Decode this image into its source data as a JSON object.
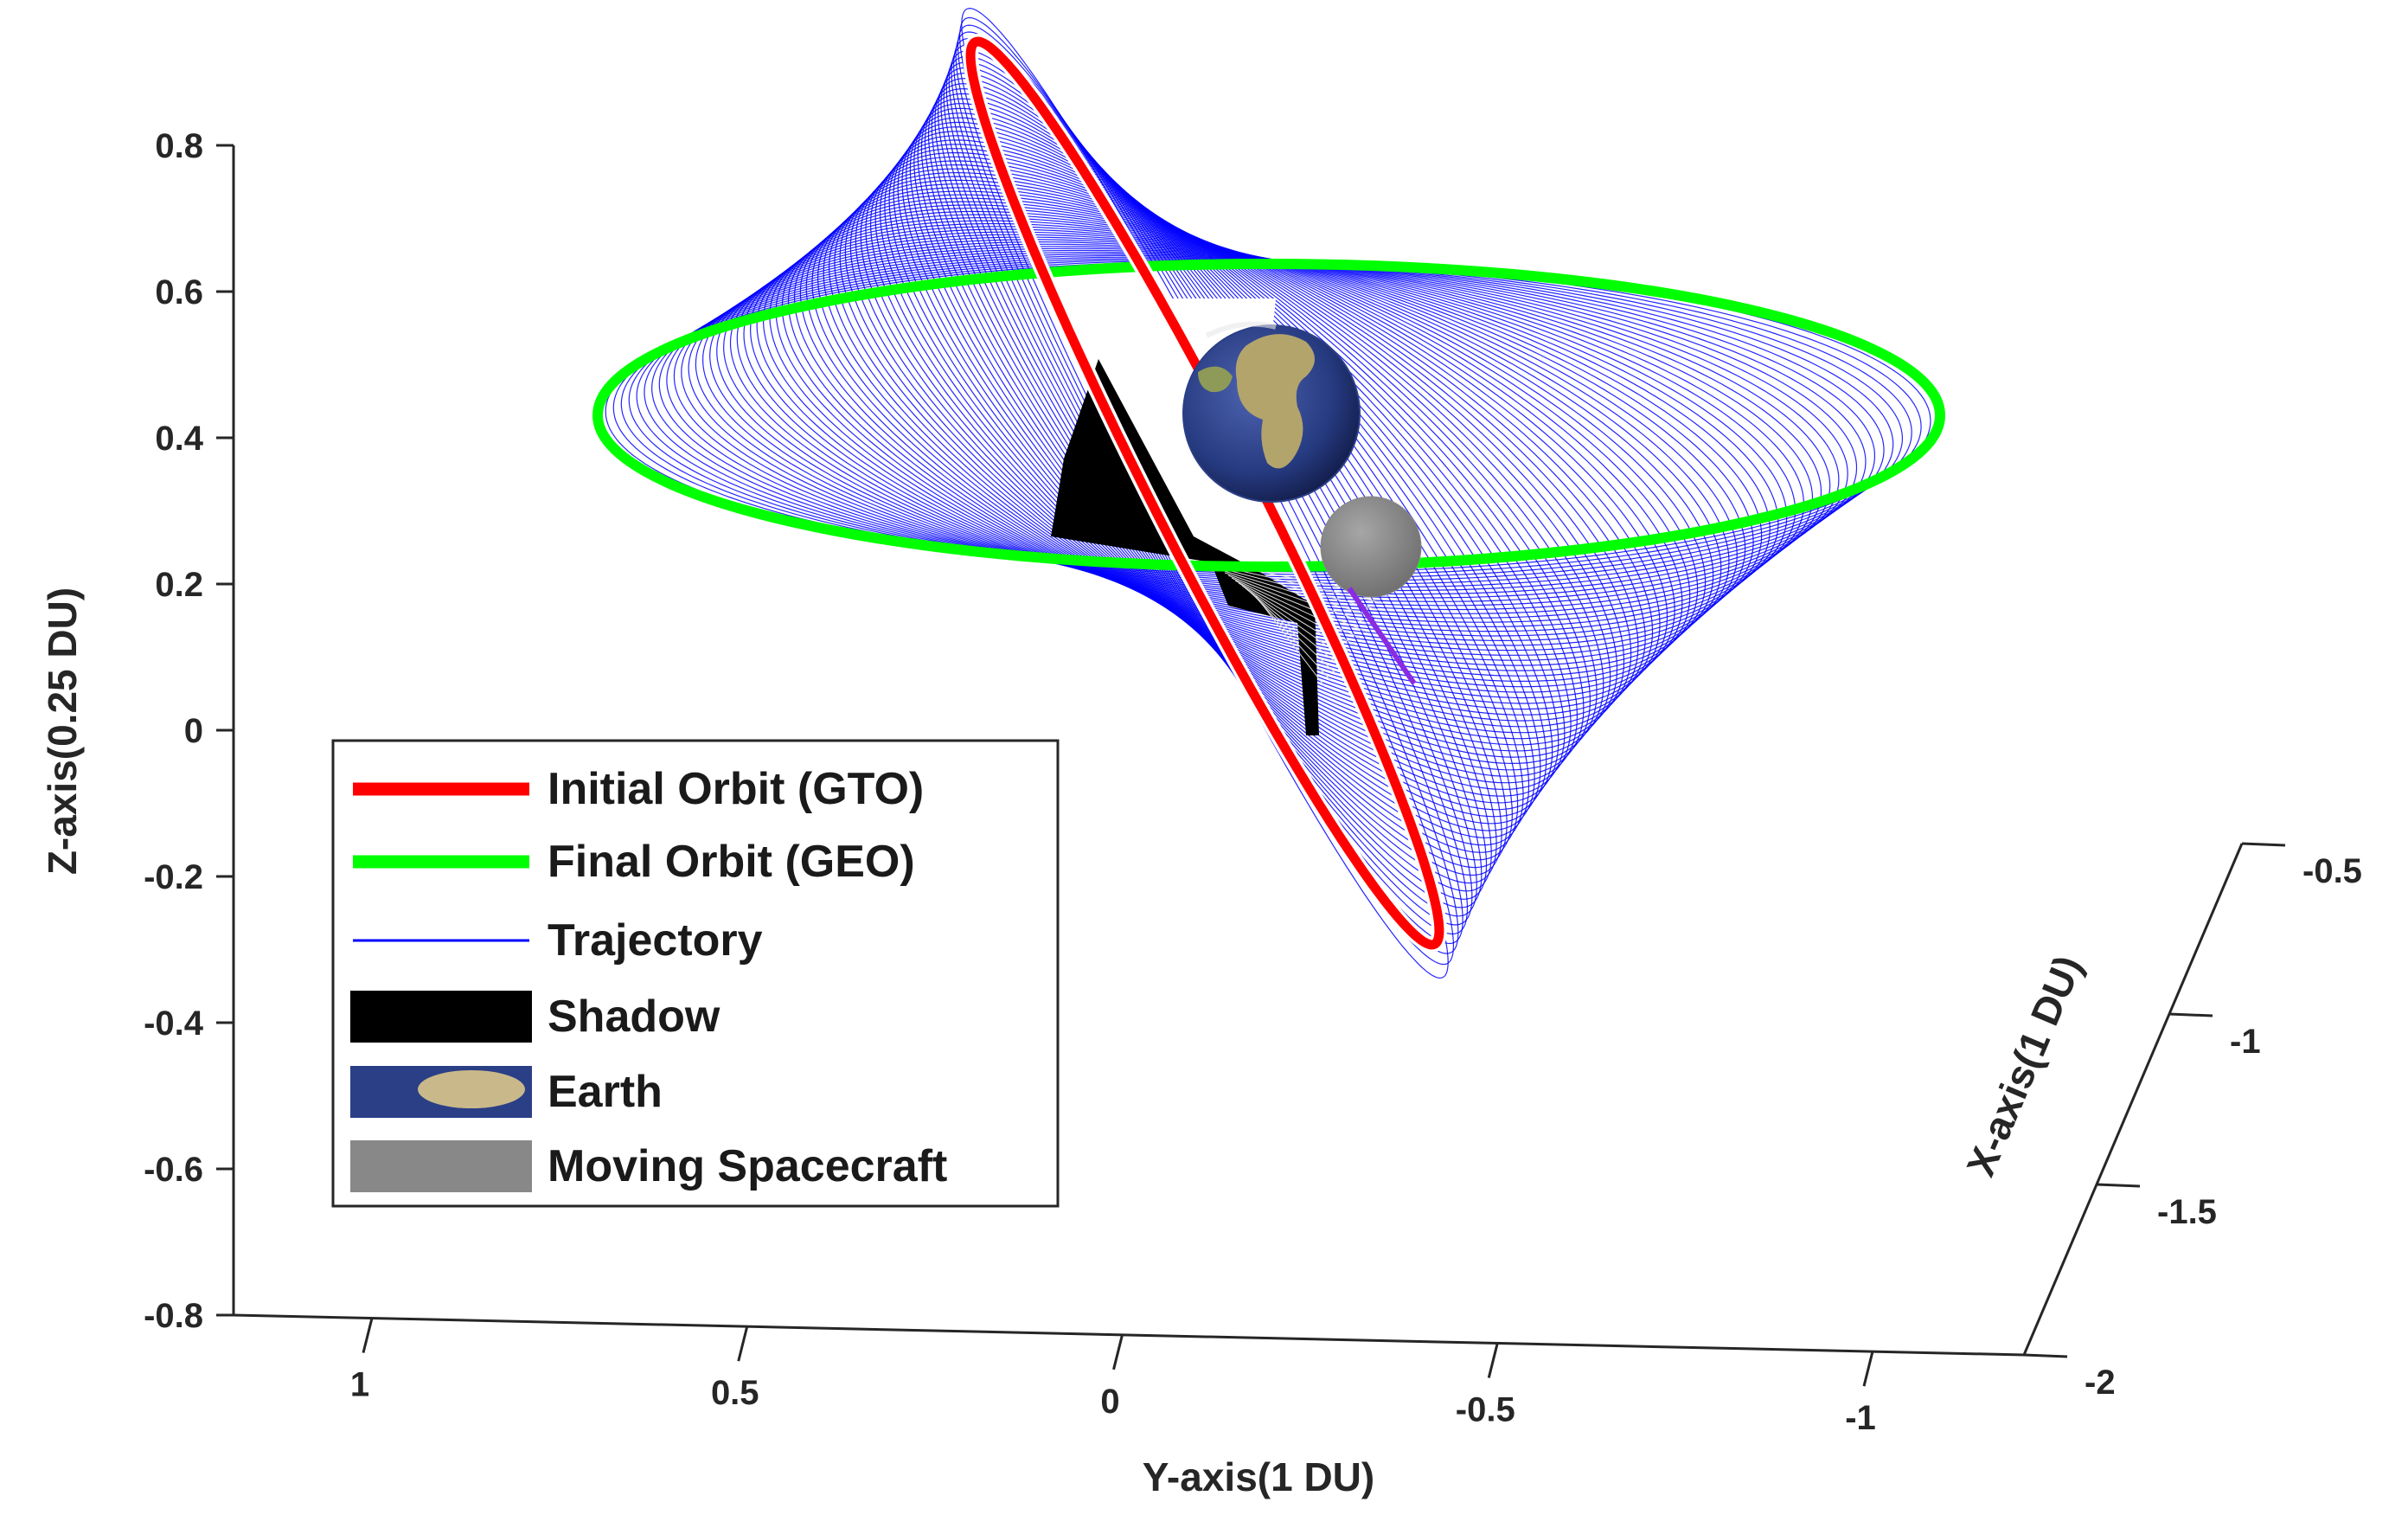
{
  "chart_data": {
    "type": "line",
    "projection": "3d",
    "title": "",
    "axes": {
      "z": {
        "label": "Z-axis(0.25 DU)",
        "ticks": [
          "0.8",
          "0.6",
          "0.4",
          "0.2",
          "0",
          "-0.2",
          "-0.4",
          "-0.6",
          "-0.8"
        ],
        "lim": [
          -0.8,
          0.8
        ]
      },
      "y": {
        "label": "Y-axis(1 DU)",
        "ticks": [
          "1",
          "0.5",
          "0",
          "-0.5",
          "-1"
        ],
        "lim": [
          1,
          -1
        ]
      },
      "x": {
        "label": "X-axis(1 DU)",
        "ticks": [
          "-0.5",
          "-1",
          "-1.5",
          "-2"
        ],
        "lim": [
          -0.5,
          -2
        ]
      }
    },
    "grid": false,
    "legend": {
      "placement": "center-left",
      "items": [
        {
          "label": "Initial Orbit (GTO)",
          "kind": "thick-line",
          "color": "#ff0000"
        },
        {
          "label": "Final Orbit (GEO)",
          "kind": "thick-line",
          "color": "#00ff00"
        },
        {
          "label": "Trajectory",
          "kind": "thin-line",
          "color": "#0000ff"
        },
        {
          "label": "Shadow",
          "kind": "patch",
          "color": "#000000"
        },
        {
          "label": "Earth",
          "kind": "image-patch",
          "color": "#2b3f86"
        },
        {
          "label": "Moving Spacecraft",
          "kind": "patch",
          "color": "#888888"
        }
      ]
    },
    "series": [
      {
        "name": "Initial Orbit (GTO)",
        "color": "#ff0000",
        "style": "ellipse, highly inclined"
      },
      {
        "name": "Final Orbit (GEO)",
        "color": "#00ff00",
        "style": "circle, equatorial"
      },
      {
        "name": "Trajectory",
        "color": "#0000ff",
        "style": "spiral transfer"
      },
      {
        "name": "Shadow",
        "color": "#000000",
        "style": "eclipse segments"
      }
    ],
    "objects": [
      {
        "name": "Earth",
        "color": "#2b3f86"
      },
      {
        "name": "Moving Spacecraft",
        "color": "#8a8a8a"
      }
    ]
  }
}
